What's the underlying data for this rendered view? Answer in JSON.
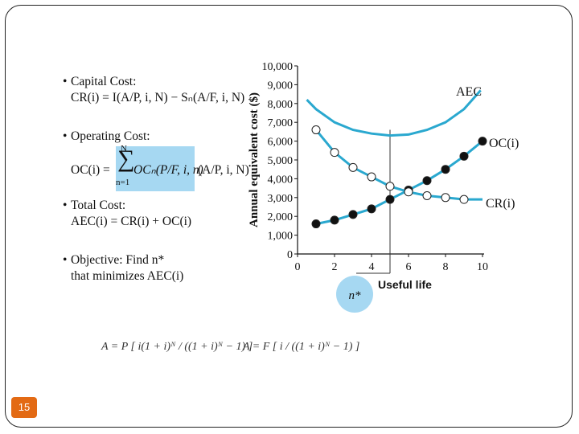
{
  "bullets": {
    "capital_label": "Capital Cost:",
    "capital_formula": "CR(i) = I(A/P, i, N) − Sₙ(A/F, i, N)",
    "operating_label": "Operating Cost:",
    "operating_formula_left": "OC(i) =",
    "operating_sum_top": "N",
    "operating_sum_bottom": "n=1",
    "operating_formula_mid": "OCₙ(P/F, i, n)",
    "operating_formula_right": "(A/P, i, N)",
    "total_label": "Total Cost:",
    "total_formula": "AEC(i) = CR(i) + OC(i)",
    "objective_line1": "Objective: Find n*",
    "objective_line2": "that minimizes AEC(i)"
  },
  "formulas": {
    "ap": "A = P [ i(1 + i)ᴺ / ((1 + i)ᴺ − 1) ]",
    "af": "A = F [ i / ((1 + i)ᴺ − 1) ]"
  },
  "slide_number": "15",
  "colors": {
    "curve": "#2aa8cf",
    "highlight": "#a6d8f2",
    "badge": "#e36a14"
  },
  "chart_data": {
    "type": "line",
    "title": "",
    "xlabel": "",
    "ylabel": "Annual equivalent cost ($)",
    "xlim": [
      0,
      10
    ],
    "ylim": [
      0,
      10000
    ],
    "x_ticks": [
      0,
      2,
      4,
      6,
      8,
      10
    ],
    "y_ticks": [
      0,
      1000,
      2000,
      3000,
      4000,
      5000,
      6000,
      7000,
      8000,
      9000,
      10000
    ],
    "y_tick_labels": [
      "0",
      "1,000",
      "2,000",
      "3,000",
      "4,000",
      "5,000",
      "6,000",
      "7,000",
      "8,000",
      "9,000",
      "10,000"
    ],
    "series": [
      {
        "name": "AEC",
        "label": "AEC",
        "marker": "none",
        "x": [
          0.5,
          1,
          2,
          3,
          4,
          5,
          6,
          7,
          8,
          9,
          9.9
        ],
        "y": [
          8200,
          7700,
          7000,
          6600,
          6400,
          6300,
          6350,
          6600,
          7000,
          7700,
          8700
        ]
      },
      {
        "name": "OC",
        "label": "OC(i)",
        "marker": "filled",
        "x": [
          1,
          2,
          3,
          4,
          5,
          6,
          7,
          8,
          9,
          10
        ],
        "y": [
          1600,
          1800,
          2100,
          2400,
          2900,
          3400,
          3900,
          4500,
          5200,
          6000
        ]
      },
      {
        "name": "CR",
        "label": "CR(i)",
        "marker": "open",
        "x": [
          1,
          2,
          3,
          4,
          5,
          6,
          7,
          8,
          9
        ],
        "y": [
          6600,
          5400,
          4600,
          4100,
          3600,
          3300,
          3100,
          3000,
          2900
        ],
        "tail_x": 10,
        "tail_y": 2900
      }
    ],
    "marker_line_x": 5,
    "annotations": {
      "optimum": "n*",
      "useful_life": "Useful life"
    }
  }
}
